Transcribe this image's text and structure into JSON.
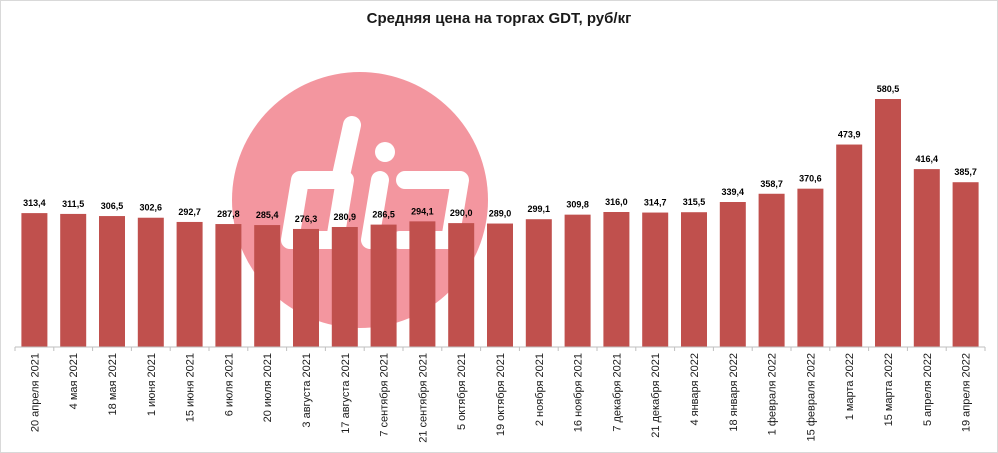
{
  "chart_data": {
    "type": "bar",
    "title": "Средняя цена на торгах GDT, руб/кг",
    "xlabel": "",
    "ylabel": "",
    "ylim": [
      0,
      600
    ],
    "grid": false,
    "categories": [
      "20 апреля 2021",
      "4 мая 2021",
      "18 мая 2021",
      "1 июня 2021",
      "15 июня 2021",
      "6 июля 2021",
      "20 июля 2021",
      "3 августа 2021",
      "17 августа 2021",
      "7 сентября 2021",
      "21 сентября 2021",
      "5 октября 2021",
      "19 октября 2021",
      "2 ноября 2021",
      "16 ноября 2021",
      "7 декабря 2021",
      "21 декабря 2021",
      "4 января 2022",
      "18 января 2022",
      "1 февраля 2022",
      "15 февраля 2022",
      "1 марта 2022",
      "15 марта 2022",
      "5 апреля 2022",
      "19 апреля 2022"
    ],
    "values": [
      313.4,
      311.5,
      306.5,
      302.6,
      292.7,
      287.8,
      285.4,
      276.3,
      280.9,
      286.5,
      294.1,
      290.0,
      289.0,
      299.1,
      309.8,
      316.0,
      314.7,
      315.5,
      339.4,
      358.7,
      370.6,
      473.9,
      580.5,
      416.4,
      385.7
    ],
    "data_labels": [
      "313,4",
      "311,5",
      "306,5",
      "302,6",
      "292,7",
      "287,8",
      "285,4",
      "276,3",
      "280,9",
      "286,5",
      "294,1",
      "290,0",
      "289,0",
      "299,1",
      "309,8",
      "316,0",
      "314,7",
      "315,5",
      "339,4",
      "358,7",
      "370,6",
      "473,9",
      "580,5",
      "416,4",
      "385,7"
    ]
  },
  "colors": {
    "bar": "#c0504d",
    "watermark": "#f28b95",
    "label": "#000000"
  },
  "watermark": {
    "icon": "dia-logo-icon",
    "text": "dia"
  }
}
